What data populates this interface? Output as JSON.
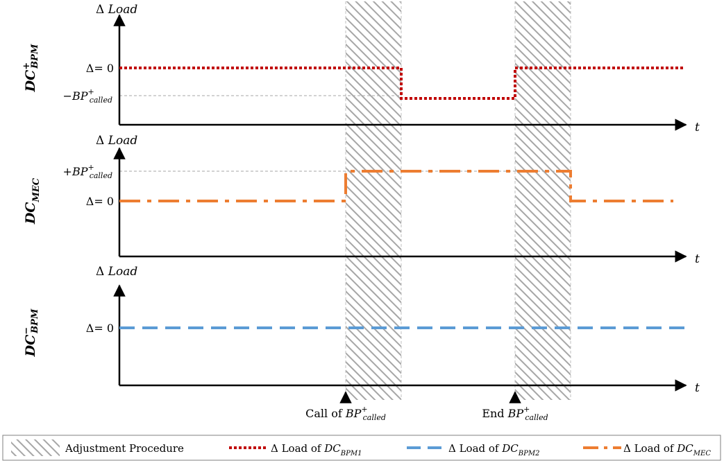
{
  "panels": [
    {
      "row_label": {
        "base": "DC",
        "sup": "+",
        "sub": "BPM"
      },
      "y_axis_label": {
        "prefix": "Δ",
        "word": "Load"
      },
      "t_label": "t",
      "levels": [
        {
          "text": "Δ= 0"
        },
        {
          "pre": "−BP",
          "sup": "+",
          "sub": "called"
        }
      ]
    },
    {
      "row_label": {
        "base": "DC",
        "sup": "",
        "sub": "MEC"
      },
      "y_axis_label": {
        "prefix": "Δ",
        "word": "Load"
      },
      "t_label": "t",
      "levels": [
        {
          "pre": "+BP",
          "sup": "+",
          "sub": "called"
        },
        {
          "text": "Δ= 0"
        }
      ]
    },
    {
      "row_label": {
        "base": "DC",
        "sup": "−",
        "sub": "BPM"
      },
      "y_axis_label": {
        "prefix": "Δ",
        "word": "Load"
      },
      "t_label": "t",
      "levels": [
        {
          "text": "Δ= 0"
        }
      ]
    }
  ],
  "events": {
    "call": {
      "prefix": "Call of ",
      "base": "BP",
      "sup": "+",
      "sub": "called"
    },
    "end": {
      "prefix": "End ",
      "base": "BP",
      "sup": "+",
      "sub": "called"
    }
  },
  "legend": {
    "adjustment": "Adjustment Procedure",
    "bpm1": {
      "prefix": "Δ Load of ",
      "base": "DC",
      "sub": "BPM1"
    },
    "bpm2": {
      "prefix": "Δ Load of ",
      "base": "DC",
      "sub": "BPM2"
    },
    "mec": {
      "prefix": "Δ Load of ",
      "base": "DC",
      "sub": "MEC"
    }
  },
  "colors": {
    "bpm1": "#c00000",
    "bpm2": "#5b9bd5",
    "mec": "#ed7d31",
    "hatch": "#a6a6a6",
    "guide": "#a6a6a6"
  }
}
